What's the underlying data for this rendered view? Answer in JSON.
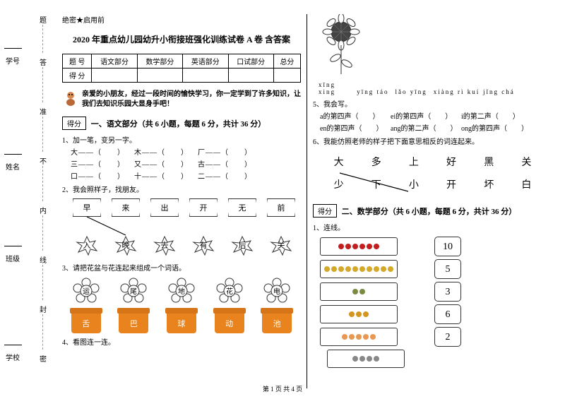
{
  "margin": {
    "labels": [
      "学号",
      "姓名",
      "班级",
      "学校"
    ],
    "chars": [
      "题",
      "答",
      "准",
      "不",
      "内",
      "线",
      "封",
      "密"
    ]
  },
  "confidential": "绝密★启用前",
  "title": "2020 年重点幼儿园幼升小衔接班强化训练试卷 A 卷 含答案",
  "scoreHeaders": [
    "题 号",
    "语文部分",
    "数学部分",
    "英语部分",
    "口试部分",
    "总分"
  ],
  "scoreRow": "得 分",
  "intro": "亲爱的小朋友，经过一段时间的愉快学习，你一定学到了许多知识，让我们去知识乐园大显身手吧！",
  "scoreLabel": "得分",
  "section1": "一、语文部分（共 6 小题，每题 6 分，共计 36 分）",
  "q1": "1、加一笔，变另一字。",
  "q1_rows": [
    [
      "大——（　　）",
      "木——（　　）",
      "厂——（　　）"
    ],
    [
      "三——（　　）",
      "又——（　　）",
      "古——（　　）"
    ],
    [
      "口——（　　）",
      "十——（　　）",
      "二——（　　）"
    ]
  ],
  "q2": "2、我会照样子，找朋友。",
  "flags_top": [
    "早",
    "来",
    "出",
    "开",
    "无",
    "前"
  ],
  "flags_bot": [
    "入",
    "晚",
    "去",
    "有",
    "后",
    "关"
  ],
  "q3": "3、请把花盆与花连起来组成一个词语。",
  "flower_chars": [
    "运",
    "尾",
    "地",
    "花",
    "电"
  ],
  "pot_chars": [
    "舌",
    "巴",
    "球",
    "动",
    "池"
  ],
  "q4": "4、看图连一连。",
  "pinyin": [
    "xīng xing",
    "yīng táo",
    "lǎo yīng",
    "xiàng rì kuí",
    "jǐng chá"
  ],
  "q5": "5、我会写。",
  "q5_rows": [
    [
      "a的第四声（　　）",
      "ei的第四声（　　）",
      "i的第二声（　　）"
    ],
    [
      "en的第四声（　　）",
      "ang的第二声（　　）",
      "ong的第四声（　　）"
    ]
  ],
  "q6": "6、我能仿照老师的样子把下面意思相反的词连起来。",
  "words_top": [
    "大",
    "多",
    "上",
    "好",
    "黑",
    "关"
  ],
  "words_bot": [
    "少",
    "下",
    "小",
    "开",
    "坏",
    "白"
  ],
  "section2": "二、数学部分（共 6 小题，每题 6 分，共计 36 分）",
  "m1": "1、连线。",
  "numbers": [
    "10",
    "5",
    "3",
    "6",
    "2"
  ],
  "obj_colors": [
    "#c41e1e",
    "#d4a828",
    "#7a8a3e",
    "#d4941e",
    "#e89850",
    "#888888"
  ],
  "obj_counts": [
    6,
    10,
    2,
    3,
    5,
    4
  ],
  "footer": "第 1 页 共 4 页"
}
